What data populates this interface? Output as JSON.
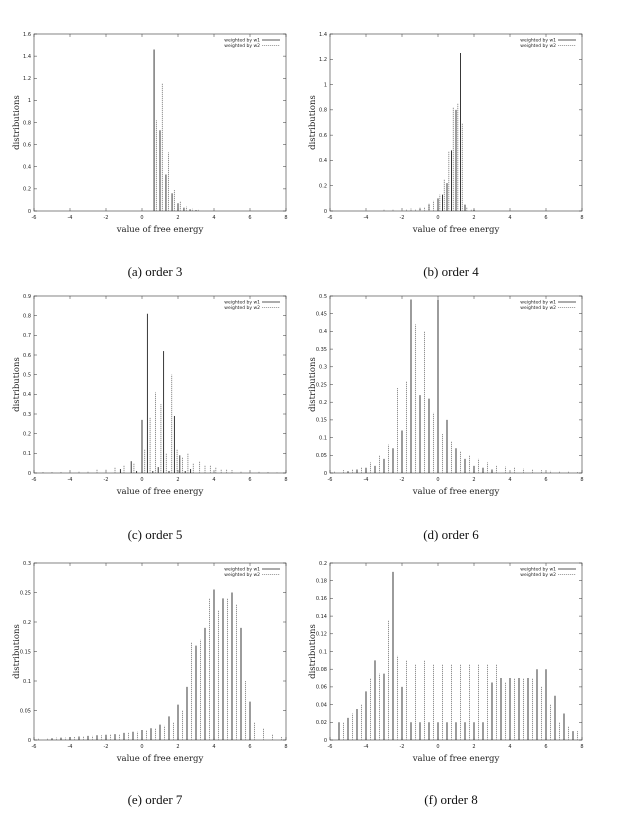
{
  "chart_data": [
    {
      "type": "bar",
      "caption": "(a) order 3",
      "xlabel": "value of free energy",
      "ylabel": "distributions",
      "xlim": [
        -6,
        8
      ],
      "ylim": [
        0,
        1.6
      ],
      "xticks": [
        -6,
        -4,
        -2,
        0,
        2,
        4,
        6,
        8
      ],
      "yticks": [
        0,
        0.2,
        0.4,
        0.6,
        0.8,
        1,
        1.2,
        1.4,
        1.6
      ],
      "legend_position": "top-right",
      "series": [
        {
          "name": "weighted by w1",
          "style": "solid",
          "color": "#222222",
          "x": [
            0.67,
            1.0,
            1.33,
            1.67,
            2.0,
            2.33,
            2.67,
            3.0
          ],
          "values": [
            1.46,
            0.73,
            0.33,
            0.16,
            0.07,
            0.03,
            0.015,
            0.008
          ]
        },
        {
          "name": "weighted by w2",
          "style": "dashed",
          "color": "#888888",
          "x": [
            0.8,
            1.13,
            1.47,
            1.8,
            2.13,
            2.47,
            2.8,
            3.13,
            3.47
          ],
          "values": [
            0.82,
            1.15,
            0.53,
            0.19,
            0.09,
            0.04,
            0.02,
            0.01,
            0.005
          ]
        }
      ]
    },
    {
      "type": "bar",
      "caption": "(b) order 4",
      "xlabel": "value of free energy",
      "ylabel": "distributions",
      "xlim": [
        -6,
        8
      ],
      "ylim": [
        0,
        1.4
      ],
      "xticks": [
        -6,
        -4,
        -2,
        0,
        2,
        4,
        6,
        8
      ],
      "yticks": [
        0,
        0.2,
        0.4,
        0.6,
        0.8,
        1,
        1.2,
        1.4
      ],
      "legend_position": "top-right",
      "series": [
        {
          "name": "weighted by w1",
          "style": "solid",
          "color": "#222222",
          "x": [
            -2.0,
            -1.5,
            -1.0,
            -0.5,
            0.0,
            0.25,
            0.5,
            0.75,
            1.0,
            1.25,
            1.5,
            2.0
          ],
          "values": [
            0.005,
            0.01,
            0.02,
            0.05,
            0.1,
            0.13,
            0.22,
            0.48,
            0.8,
            1.25,
            0.05,
            0.01
          ]
        },
        {
          "name": "weighted by w2",
          "style": "dashed",
          "color": "#888888",
          "x": [
            -4.0,
            -3.0,
            -2.5,
            -2.0,
            -1.75,
            -1.5,
            -1.25,
            -1.0,
            -0.75,
            -0.5,
            -0.25,
            0.1,
            0.35,
            0.6,
            0.85,
            1.1,
            1.35,
            1.6,
            1.85
          ],
          "values": [
            0.005,
            0.01,
            0.01,
            0.02,
            0.01,
            0.02,
            0.01,
            0.03,
            0.03,
            0.06,
            0.08,
            0.13,
            0.25,
            0.47,
            0.82,
            0.85,
            0.69,
            0.03,
            0.01
          ]
        }
      ]
    },
    {
      "type": "bar",
      "caption": "(c) order 5",
      "xlabel": "value of free energy",
      "ylabel": "distributions",
      "xlim": [
        -6,
        8
      ],
      "ylim": [
        0,
        0.9
      ],
      "xticks": [
        -6,
        -4,
        -2,
        0,
        2,
        4,
        6,
        8
      ],
      "yticks": [
        0,
        0.1,
        0.2,
        0.3,
        0.4,
        0.5,
        0.6,
        0.7,
        0.8,
        0.9
      ],
      "legend_position": "top-right",
      "series": [
        {
          "name": "weighted by w1",
          "style": "solid",
          "color": "#222222",
          "x": [
            -1.2,
            -0.6,
            -0.3,
            0.0,
            0.3,
            0.6,
            0.9,
            1.2,
            1.5,
            1.8,
            2.1,
            2.4,
            2.7
          ],
          "values": [
            0.02,
            0.06,
            0.01,
            0.27,
            0.81,
            0.01,
            0.03,
            0.62,
            0.01,
            0.29,
            0.09,
            0.01,
            0.02
          ]
        },
        {
          "name": "weighted by w2",
          "style": "dashed",
          "color": "#888888",
          "x": [
            -5.5,
            -5.0,
            -4.5,
            -4.0,
            -3.5,
            -3.0,
            -2.5,
            -2.0,
            -1.5,
            -1.0,
            -0.45,
            0.15,
            0.45,
            0.75,
            1.05,
            1.35,
            1.65,
            1.95,
            2.25,
            2.55,
            2.85,
            3.2,
            3.5,
            3.8,
            4.1,
            4.4,
            4.7,
            5.0,
            5.5,
            6.0,
            6.5,
            7.0,
            7.5
          ],
          "values": [
            0.005,
            0.005,
            0.005,
            0.01,
            0.01,
            0.01,
            0.02,
            0.02,
            0.03,
            0.04,
            0.05,
            0.12,
            0.28,
            0.41,
            0.35,
            0.1,
            0.5,
            0.12,
            0.08,
            0.1,
            0.05,
            0.06,
            0.04,
            0.04,
            0.03,
            0.02,
            0.02,
            0.015,
            0.01,
            0.008,
            0.006,
            0.005,
            0.004
          ]
        }
      ]
    },
    {
      "type": "bar",
      "caption": "(d) order 6",
      "xlabel": "value of free energy",
      "ylabel": "distributions",
      "xlim": [
        -6,
        8
      ],
      "ylim": [
        0,
        0.5
      ],
      "xticks": [
        -6,
        -4,
        -2,
        0,
        2,
        4,
        6,
        8
      ],
      "yticks": [
        0,
        0.05,
        0.1,
        0.15,
        0.2,
        0.25,
        0.3,
        0.35,
        0.4,
        0.45,
        0.5
      ],
      "legend_position": "top-right",
      "series": [
        {
          "name": "weighted by w1",
          "style": "solid",
          "color": "#222222",
          "x": [
            -5.0,
            -4.5,
            -4.0,
            -3.5,
            -3.0,
            -2.5,
            -2.0,
            -1.5,
            -1.0,
            -0.5,
            0.0,
            0.5,
            1.0,
            1.5,
            2.0,
            2.5,
            3.0
          ],
          "values": [
            0.005,
            0.01,
            0.015,
            0.02,
            0.04,
            0.07,
            0.12,
            0.49,
            0.22,
            0.21,
            0.49,
            0.15,
            0.07,
            0.04,
            0.02,
            0.015,
            0.01
          ]
        },
        {
          "name": "weighted by w2",
          "style": "dashed",
          "color": "#888888",
          "x": [
            -5.75,
            -5.25,
            -4.75,
            -4.25,
            -3.75,
            -3.25,
            -2.75,
            -2.25,
            -1.75,
            -1.25,
            -0.75,
            -0.25,
            0.25,
            0.75,
            1.25,
            1.75,
            2.25,
            2.75,
            3.25,
            3.75,
            4.25,
            4.75,
            5.25,
            5.75,
            6.25,
            6.75,
            7.25,
            7.75
          ],
          "values": [
            0.005,
            0.008,
            0.01,
            0.015,
            0.03,
            0.05,
            0.08,
            0.24,
            0.26,
            0.42,
            0.4,
            0.17,
            0.11,
            0.09,
            0.06,
            0.05,
            0.04,
            0.03,
            0.02,
            0.018,
            0.015,
            0.012,
            0.01,
            0.008,
            0.006,
            0.005,
            0.004,
            0.003
          ]
        }
      ]
    },
    {
      "type": "bar",
      "caption": "(e) order 7",
      "xlabel": "value of free energy",
      "ylabel": "distributions",
      "xlim": [
        -6,
        8
      ],
      "ylim": [
        0,
        0.3
      ],
      "xticks": [
        -6,
        -4,
        -2,
        0,
        2,
        4,
        6,
        8
      ],
      "yticks": [
        0,
        0.05,
        0.1,
        0.15,
        0.2,
        0.25,
        0.3
      ],
      "legend_position": "top-right",
      "series": [
        {
          "name": "weighted by w1",
          "style": "solid",
          "color": "#222222",
          "x": [
            -5.0,
            -4.5,
            -4.0,
            -3.5,
            -3.0,
            -2.5,
            -2.0,
            -1.5,
            -1.0,
            -0.5,
            0.0,
            0.5,
            1.0,
            1.5,
            2.0,
            2.5,
            3.0,
            3.5,
            4.0,
            4.5,
            5.0,
            5.5,
            6.0
          ],
          "values": [
            0.003,
            0.004,
            0.005,
            0.006,
            0.007,
            0.008,
            0.009,
            0.01,
            0.012,
            0.014,
            0.017,
            0.02,
            0.026,
            0.04,
            0.06,
            0.09,
            0.16,
            0.19,
            0.255,
            0.24,
            0.25,
            0.19,
            0.065
          ]
        },
        {
          "name": "weighted by w2",
          "style": "dashed",
          "color": "#888888",
          "x": [
            -5.75,
            -5.25,
            -4.75,
            -4.25,
            -3.75,
            -3.25,
            -2.75,
            -2.25,
            -1.75,
            -1.25,
            -0.75,
            -0.25,
            0.25,
            0.75,
            1.25,
            1.75,
            2.25,
            2.75,
            3.25,
            3.75,
            4.25,
            4.75,
            5.25,
            5.75,
            6.25,
            6.75,
            7.25,
            7.75
          ],
          "values": [
            0.003,
            0.003,
            0.004,
            0.004,
            0.005,
            0.006,
            0.007,
            0.008,
            0.009,
            0.01,
            0.012,
            0.014,
            0.016,
            0.02,
            0.024,
            0.03,
            0.05,
            0.165,
            0.17,
            0.24,
            0.22,
            0.24,
            0.23,
            0.1,
            0.03,
            0.02,
            0.01,
            0.005
          ]
        }
      ]
    },
    {
      "type": "bar",
      "caption": "(f) order 8",
      "xlabel": "value of free energy",
      "ylabel": "distributions",
      "xlim": [
        -6,
        8
      ],
      "ylim": [
        0,
        0.2
      ],
      "xticks": [
        -6,
        -4,
        -2,
        0,
        2,
        4,
        6,
        8
      ],
      "yticks": [
        0,
        0.02,
        0.04,
        0.06,
        0.08,
        0.1,
        0.12,
        0.14,
        0.16,
        0.18,
        0.2
      ],
      "legend_position": "top-right",
      "series": [
        {
          "name": "weighted by w1",
          "style": "solid",
          "color": "#222222",
          "x": [
            -5.5,
            -5.0,
            -4.5,
            -4.0,
            -3.5,
            -3.0,
            -2.5,
            -2.0,
            -1.5,
            -1.0,
            -0.5,
            0.0,
            0.5,
            1.0,
            1.5,
            2.0,
            2.5,
            3.0,
            3.5,
            4.0,
            4.5,
            5.0,
            5.5,
            6.0,
            6.5,
            7.0,
            7.5
          ],
          "values": [
            0.02,
            0.025,
            0.035,
            0.055,
            0.09,
            0.075,
            0.19,
            0.06,
            0.02,
            0.02,
            0.02,
            0.02,
            0.02,
            0.02,
            0.02,
            0.02,
            0.02,
            0.065,
            0.07,
            0.07,
            0.07,
            0.07,
            0.08,
            0.08,
            0.05,
            0.03,
            0.01
          ]
        },
        {
          "name": "weighted by w2",
          "style": "dashed",
          "color": "#888888",
          "x": [
            -5.25,
            -4.75,
            -4.25,
            -3.75,
            -3.25,
            -2.75,
            -2.25,
            -1.75,
            -1.25,
            -0.75,
            -0.25,
            0.25,
            0.75,
            1.25,
            1.75,
            2.25,
            2.75,
            3.25,
            3.75,
            4.25,
            4.75,
            5.25,
            5.75,
            6.25,
            6.75,
            7.25,
            7.75
          ],
          "values": [
            0.02,
            0.03,
            0.04,
            0.07,
            0.075,
            0.135,
            0.095,
            0.09,
            0.085,
            0.09,
            0.085,
            0.085,
            0.085,
            0.085,
            0.085,
            0.085,
            0.085,
            0.085,
            0.065,
            0.07,
            0.07,
            0.07,
            0.06,
            0.04,
            0.02,
            0.015,
            0.01
          ]
        }
      ]
    }
  ]
}
